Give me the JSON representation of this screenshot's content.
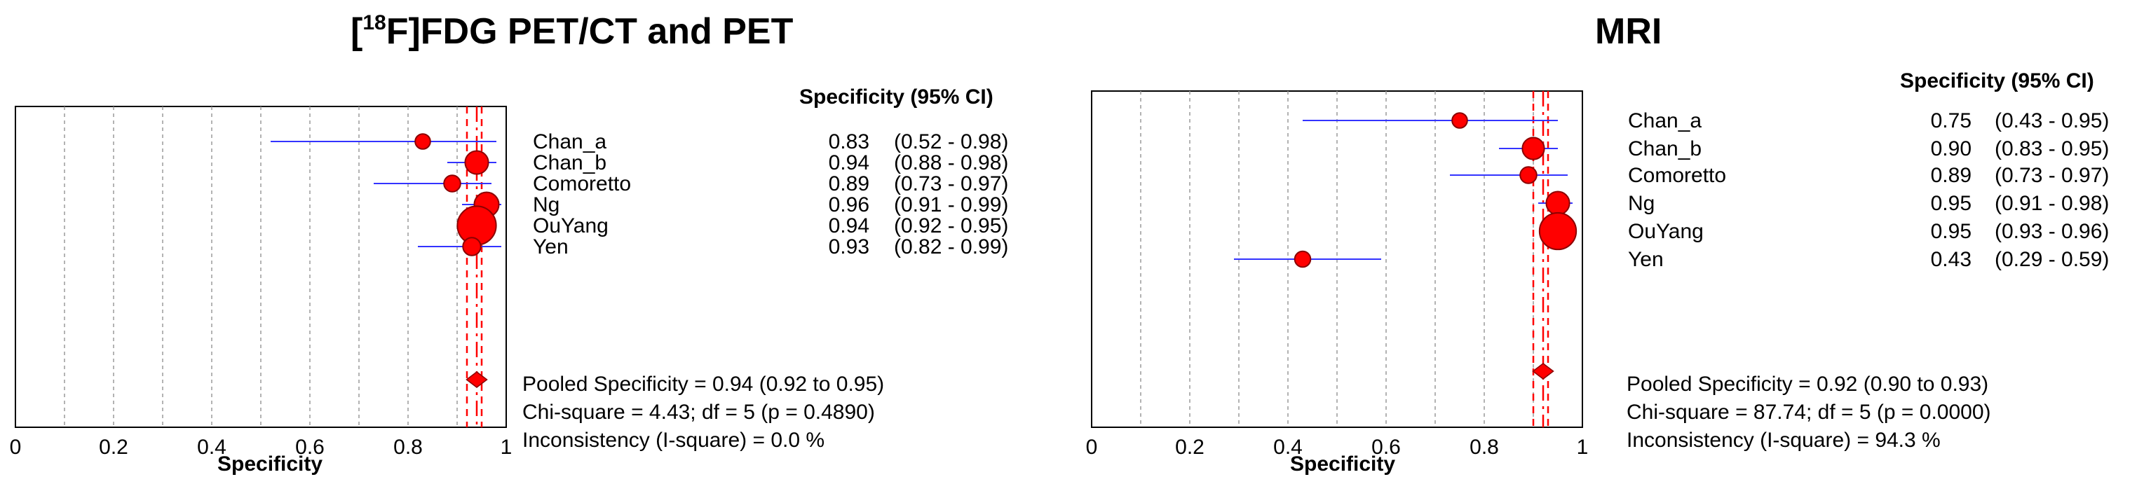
{
  "chart_data": [
    {
      "type": "forest",
      "title_pre": "[",
      "title_sup": "18",
      "title_post": "F]FDG PET/CT and PET",
      "column_header": "Specificity (95% CI)",
      "xlabel": "Specificity",
      "xlim": [
        0,
        1
      ],
      "xticks": [
        "0",
        "0.2",
        "0.4",
        "0.6",
        "0.8",
        "1"
      ],
      "grid": true,
      "studies": [
        {
          "name": "Chan_a",
          "spec": 0.83,
          "lo": 0.52,
          "hi": 0.98,
          "est": "0.83",
          "ci": "(0.52 - 0.98)",
          "weight": 1.0
        },
        {
          "name": "Chan_b",
          "spec": 0.94,
          "lo": 0.88,
          "hi": 0.98,
          "est": "0.94",
          "ci": "(0.88 - 0.98)",
          "weight": 2.2
        },
        {
          "name": "Comoretto",
          "spec": 0.89,
          "lo": 0.73,
          "hi": 0.97,
          "est": "0.89",
          "ci": "(0.73 - 0.97)",
          "weight": 1.2
        },
        {
          "name": "Ng",
          "spec": 0.96,
          "lo": 0.91,
          "hi": 0.99,
          "est": "0.96",
          "ci": "(0.91 - 0.99)",
          "weight": 2.4
        },
        {
          "name": "OuYang",
          "spec": 0.94,
          "lo": 0.92,
          "hi": 0.95,
          "est": "0.94",
          "ci": "(0.92 - 0.95)",
          "weight": 4.5
        },
        {
          "name": "Yen",
          "spec": 0.93,
          "lo": 0.82,
          "hi": 0.99,
          "est": "0.93",
          "ci": "(0.82 - 0.99)",
          "weight": 1.4
        }
      ],
      "pooled": {
        "spec": 0.94,
        "lo": 0.92,
        "hi": 0.95
      },
      "stats": [
        "Pooled Specificity = 0.94 (0.92 to 0.95)",
        "Chi-square = 4.43; df =  5 (p = 0.4890)",
        "Inconsistency (I-square) = 0.0 %"
      ]
    },
    {
      "type": "forest",
      "title": "MRI",
      "column_header": "Specificity (95% CI)",
      "xlabel": "Specificity",
      "xlim": [
        0,
        1
      ],
      "xticks": [
        "0",
        "0.2",
        "0.4",
        "0.6",
        "0.8",
        "1"
      ],
      "grid": true,
      "studies": [
        {
          "name": "Chan_a",
          "spec": 0.75,
          "lo": 0.43,
          "hi": 0.95,
          "est": "0.75",
          "ci": "(0.43 - 0.95)",
          "weight": 1.0
        },
        {
          "name": "Chan_b",
          "spec": 0.9,
          "lo": 0.83,
          "hi": 0.95,
          "est": "0.90",
          "ci": "(0.83 - 0.95)",
          "weight": 2.0
        },
        {
          "name": "Comoretto",
          "spec": 0.89,
          "lo": 0.73,
          "hi": 0.97,
          "est": "0.89",
          "ci": "(0.73 - 0.97)",
          "weight": 1.2
        },
        {
          "name": "Ng",
          "spec": 0.95,
          "lo": 0.91,
          "hi": 0.98,
          "est": "0.95",
          "ci": "(0.91 - 0.98)",
          "weight": 2.2
        },
        {
          "name": "OuYang",
          "spec": 0.95,
          "lo": 0.93,
          "hi": 0.96,
          "est": "0.95",
          "ci": "(0.93 - 0.96)",
          "weight": 4.2
        },
        {
          "name": "Yen",
          "spec": 0.43,
          "lo": 0.29,
          "hi": 0.59,
          "est": "0.43",
          "ci": "(0.29 - 0.59)",
          "weight": 1.1
        }
      ],
      "pooled": {
        "spec": 0.92,
        "lo": 0.9,
        "hi": 0.93
      },
      "stats": [
        "Pooled Specificity = 0.92 (0.90 to 0.93)",
        "Chi-square = 87.74; df =  5 (p = 0.0000)",
        "Inconsistency (I-square) = 94.3 %"
      ]
    }
  ],
  "colors": {
    "ci_line": "#3333ff",
    "marker_fill": "#ff0000",
    "marker_stroke": "#8b0000",
    "pooled_line": "#ff0000",
    "grid": "#9a9a9a",
    "frame": "#000000"
  }
}
